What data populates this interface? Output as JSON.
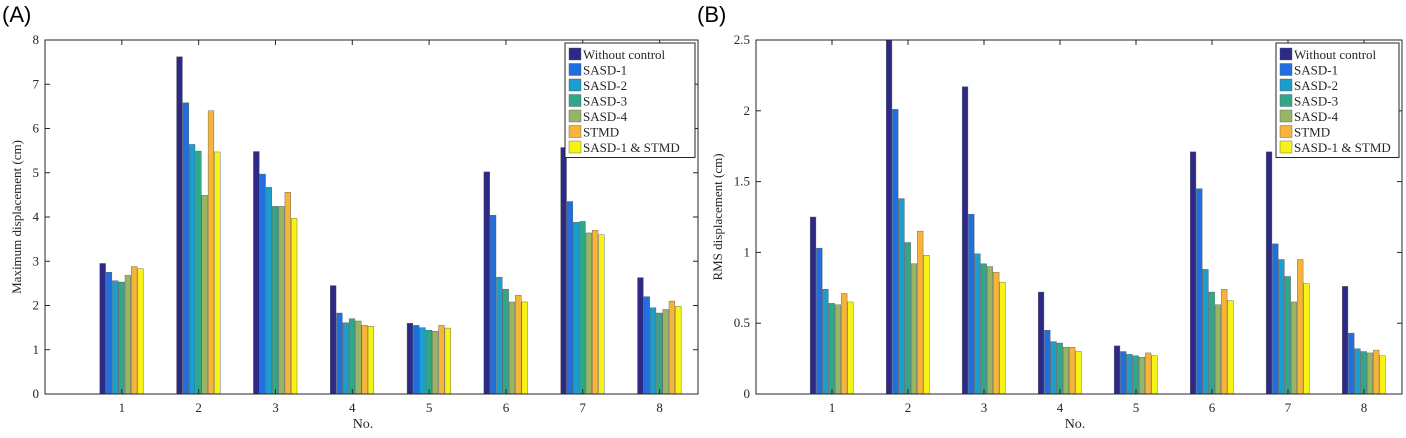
{
  "colors": [
    "#2d2a87",
    "#1f6fe0",
    "#199ecf",
    "#2fa88a",
    "#98b465",
    "#f7b43d",
    "#f7f215"
  ],
  "chart_data": [
    {
      "panel": "(A)",
      "type": "bar",
      "xlabel": "No.",
      "ylabel": "Maximum displacement (cm)",
      "ylim": [
        0,
        8
      ],
      "yticks": [
        "0",
        "1",
        "2",
        "3",
        "4",
        "5",
        "6",
        "7",
        "8"
      ],
      "categories": [
        "1",
        "2",
        "3",
        "4",
        "5",
        "6",
        "7",
        "8"
      ],
      "legend_position": "top-right",
      "series": [
        {
          "name": "Without control",
          "values": [
            2.95,
            7.62,
            5.48,
            2.45,
            1.6,
            5.02,
            5.57,
            2.63
          ]
        },
        {
          "name": "SASD-1",
          "values": [
            2.75,
            6.58,
            4.97,
            1.83,
            1.55,
            4.04,
            4.35,
            2.2
          ]
        },
        {
          "name": "SASD-2",
          "values": [
            2.56,
            5.64,
            4.67,
            1.61,
            1.5,
            2.64,
            3.88,
            1.95
          ]
        },
        {
          "name": "SASD-3",
          "values": [
            2.53,
            5.49,
            4.24,
            1.7,
            1.44,
            2.37,
            3.9,
            1.83
          ]
        },
        {
          "name": "SASD-4",
          "values": [
            2.68,
            4.49,
            4.24,
            1.65,
            1.42,
            2.08,
            3.64,
            1.91
          ]
        },
        {
          "name": "STMD",
          "values": [
            2.88,
            6.4,
            4.56,
            1.55,
            1.55,
            2.23,
            3.7,
            2.1
          ]
        },
        {
          "name": "SASD-1 & STMD",
          "values": [
            2.83,
            5.47,
            3.97,
            1.53,
            1.49,
            2.08,
            3.6,
            1.98
          ]
        }
      ]
    },
    {
      "panel": "(B)",
      "type": "bar",
      "xlabel": "No.",
      "ylabel": "RMS displacement (cm)",
      "ylim": [
        0,
        2.5
      ],
      "yticks": [
        "0",
        "0.5",
        "1",
        "1.5",
        "2",
        "2.5"
      ],
      "categories": [
        "1",
        "2",
        "3",
        "4",
        "5",
        "6",
        "7",
        "8"
      ],
      "legend_position": "top-right",
      "series": [
        {
          "name": "Without control",
          "values": [
            1.25,
            2.5,
            2.17,
            0.72,
            0.34,
            1.71,
            1.71,
            0.76
          ]
        },
        {
          "name": "SASD-1",
          "values": [
            1.03,
            2.01,
            1.27,
            0.45,
            0.3,
            1.45,
            1.06,
            0.43
          ]
        },
        {
          "name": "SASD-2",
          "values": [
            0.74,
            1.38,
            0.99,
            0.37,
            0.28,
            0.88,
            0.95,
            0.32
          ]
        },
        {
          "name": "SASD-3",
          "values": [
            0.64,
            1.07,
            0.92,
            0.36,
            0.27,
            0.72,
            0.83,
            0.3
          ]
        },
        {
          "name": "SASD-4",
          "values": [
            0.63,
            0.92,
            0.9,
            0.33,
            0.26,
            0.63,
            0.65,
            0.29
          ]
        },
        {
          "name": "STMD",
          "values": [
            0.71,
            1.15,
            0.86,
            0.33,
            0.29,
            0.74,
            0.95,
            0.31
          ]
        },
        {
          "name": "SASD-1 & STMD",
          "values": [
            0.65,
            0.98,
            0.79,
            0.3,
            0.27,
            0.66,
            0.78,
            0.27
          ]
        }
      ]
    }
  ]
}
